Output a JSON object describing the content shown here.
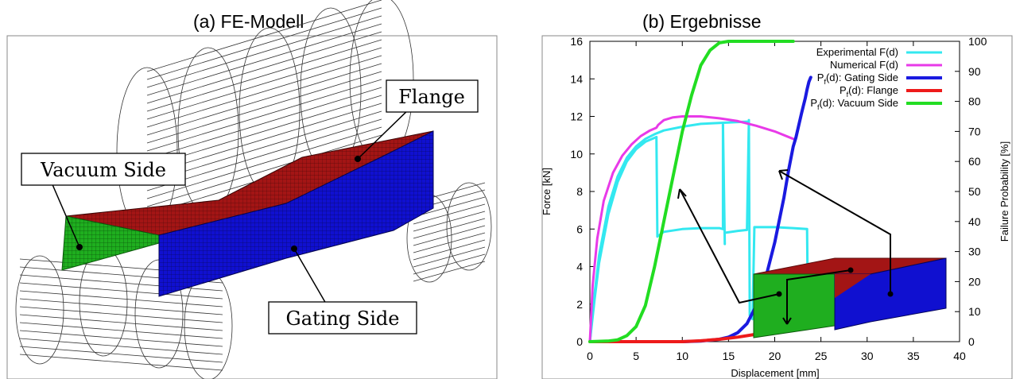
{
  "panel_a": {
    "title": "(a) FE-Modell",
    "labels": {
      "flange": "Flange",
      "vacuum_side": "Vacuum Side",
      "gating_side": "Gating Side"
    }
  },
  "panel_b": {
    "title": "(b) Ergebnisse"
  },
  "colors": {
    "flange": "#a31515",
    "vacuum_side": "#1fae1f",
    "gating_side": "#1010d0",
    "experimental": "#33e8f0",
    "numerical": "#e83ae8",
    "pf_gating": "#1a1ae0",
    "pf_flange": "#ee1a1a",
    "pf_vacuum": "#22dd22"
  },
  "chart_data": {
    "type": "line",
    "title": "",
    "xlabel": "Displacement [mm]",
    "ylabel": "Force [kN]",
    "y2label": "Failure Probability [%]",
    "xlim": [
      0,
      40
    ],
    "ylim": [
      0,
      16
    ],
    "y2lim": [
      0,
      100
    ],
    "x_ticks": [
      "0",
      "5",
      "10",
      "15",
      "20",
      "25",
      "30",
      "35",
      "40"
    ],
    "y_ticks": [
      "0",
      "2",
      "4",
      "6",
      "8",
      "10",
      "12",
      "14",
      "16"
    ],
    "y2_ticks": [
      "0",
      "10",
      "20",
      "30",
      "40",
      "50",
      "60",
      "70",
      "80",
      "90",
      "100"
    ],
    "legend_position": "top-right",
    "grid": false,
    "series": [
      {
        "name": "Experimental F(d)",
        "axis": "left",
        "color": "#33e8f0",
        "width": 3,
        "segments": [
          [
            [
              0,
              0
            ],
            [
              0.5,
              2.5
            ],
            [
              1,
              4.6
            ],
            [
              2,
              7.2
            ],
            [
              3,
              8.8
            ],
            [
              4,
              9.8
            ],
            [
              5,
              10.4
            ],
            [
              6,
              10.8
            ],
            [
              7,
              11.05
            ],
            [
              8,
              11.25
            ],
            [
              10,
              11.45
            ],
            [
              12,
              11.6
            ],
            [
              14,
              11.65
            ],
            [
              16,
              11.7
            ],
            [
              17,
              11.72
            ]
          ],
          [
            [
              0,
              0
            ],
            [
              0.5,
              2.2
            ],
            [
              1,
              4.2
            ],
            [
              2,
              6.8
            ],
            [
              3,
              8.5
            ],
            [
              4,
              9.6
            ],
            [
              5,
              10.25
            ],
            [
              6,
              10.65
            ],
            [
              7.2,
              10.9
            ]
          ],
          [
            [
              7.2,
              10.9
            ],
            [
              7.3,
              5.6
            ],
            [
              8,
              5.85
            ],
            [
              10,
              6.0
            ],
            [
              12,
              6.05
            ],
            [
              14,
              6.05
            ],
            [
              14.4,
              6.0
            ],
            [
              14.4,
              11.55
            ]
          ],
          [
            [
              14.4,
              11.55
            ],
            [
              14.6,
              5.2
            ]
          ],
          [
            [
              14.6,
              5.8
            ],
            [
              16,
              5.9
            ],
            [
              17,
              5.95
            ],
            [
              17.2,
              11.8
            ]
          ],
          [
            [
              17.2,
              11.8
            ],
            [
              17.3,
              1.4
            ],
            [
              17.6,
              1.2
            ],
            [
              17.8,
              6.1
            ],
            [
              20,
              6.1
            ],
            [
              22,
              6.05
            ],
            [
              23.5,
              6.0
            ],
            [
              23.6,
              0.8
            ]
          ]
        ]
      },
      {
        "name": "Numerical F(d)",
        "axis": "left",
        "color": "#e83ae8",
        "width": 3,
        "segments": [
          [
            [
              0,
              0
            ],
            [
              0.3,
              3
            ],
            [
              0.8,
              5.5
            ],
            [
              1.5,
              7.5
            ],
            [
              2.5,
              9.0
            ],
            [
              3.5,
              9.9
            ],
            [
              4.5,
              10.5
            ],
            [
              5.5,
              10.95
            ],
            [
              6.5,
              11.25
            ],
            [
              7.2,
              11.4
            ],
            [
              7.4,
              11.55
            ],
            [
              8,
              11.8
            ],
            [
              9,
              11.95
            ],
            [
              10,
              12.0
            ],
            [
              12,
              12.0
            ],
            [
              14,
              11.9
            ],
            [
              16,
              11.75
            ],
            [
              18,
              11.5
            ],
            [
              20,
              11.2
            ],
            [
              22,
              10.8
            ]
          ]
        ]
      },
      {
        "name": "Pf(d): Gating Side",
        "axis": "right",
        "color": "#1a1ae0",
        "width": 4,
        "segments": [
          [
            [
              10,
              0
            ],
            [
              12,
              0.2
            ],
            [
              14,
              0.8
            ],
            [
              15,
              1.5
            ],
            [
              16,
              3
            ],
            [
              17,
              6
            ],
            [
              18,
              12
            ],
            [
              19,
              21
            ],
            [
              20,
              33
            ],
            [
              21,
              48
            ],
            [
              21.5,
              57
            ],
            [
              22,
              65
            ],
            [
              22.3,
              68
            ],
            [
              22.6,
              72
            ],
            [
              22.9,
              76
            ],
            [
              23.1,
              78.5
            ],
            [
              23.3,
              81
            ],
            [
              23.5,
              84
            ],
            [
              23.7,
              86.5
            ],
            [
              23.9,
              88
            ]
          ]
        ]
      },
      {
        "name": "Pf(d): Flange",
        "axis": "right",
        "color": "#ee1a1a",
        "width": 4,
        "segments": [
          [
            [
              0,
              0
            ],
            [
              10,
              0
            ],
            [
              12,
              0.3
            ],
            [
              14,
              0.8
            ],
            [
              16,
              1.5
            ],
            [
              18,
              2.5
            ],
            [
              20,
              3.5
            ],
            [
              21,
              4.2
            ],
            [
              22,
              5.0
            ]
          ]
        ]
      },
      {
        "name": "Pf(d): Vacuum Side",
        "axis": "right",
        "color": "#22dd22",
        "width": 4,
        "segments": [
          [
            [
              0,
              0
            ],
            [
              2,
              0.2
            ],
            [
              3,
              0.6
            ],
            [
              4,
              2
            ],
            [
              5,
              5
            ],
            [
              6,
              12
            ],
            [
              7,
              25
            ],
            [
              8,
              40
            ],
            [
              9,
              55
            ],
            [
              10,
              70
            ],
            [
              11,
              82
            ],
            [
              12,
              92
            ],
            [
              13,
              97
            ],
            [
              14,
              99.5
            ],
            [
              15,
              100
            ],
            [
              22,
              100
            ]
          ]
        ]
      }
    ]
  }
}
